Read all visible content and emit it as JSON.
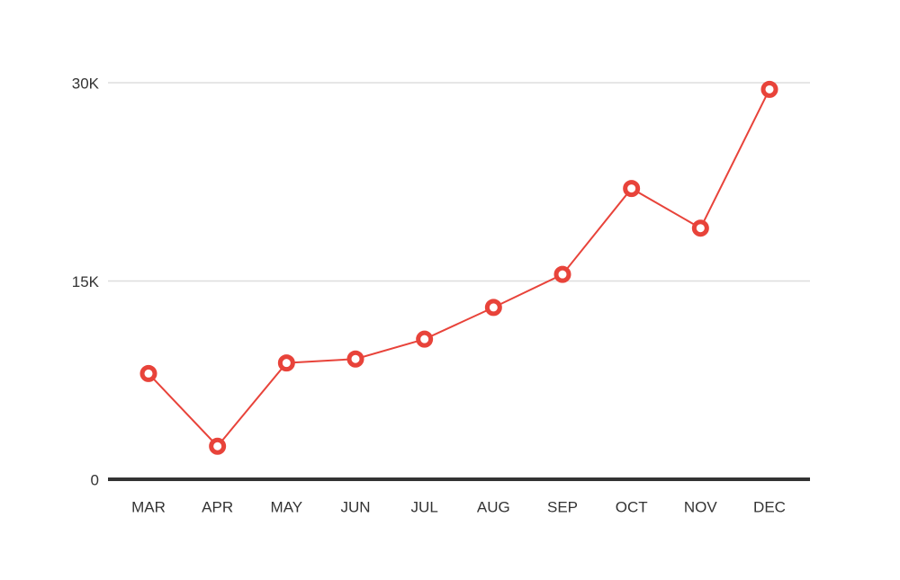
{
  "chart_data": {
    "type": "line",
    "categories": [
      "MAR",
      "APR",
      "MAY",
      "JUN",
      "JUL",
      "AUG",
      "SEP",
      "OCT",
      "NOV",
      "DEC"
    ],
    "series": [
      {
        "color": "#e8433a",
        "values": [
          8000,
          2500,
          8800,
          9100,
          10600,
          13000,
          15500,
          22000,
          19000,
          29500
        ]
      }
    ],
    "ylim": [
      0,
      30000
    ],
    "yticks": [
      0,
      {
        "value": 15000,
        "label": "15K"
      },
      {
        "value": 30000,
        "label": "30K"
      }
    ],
    "grid": true
  }
}
